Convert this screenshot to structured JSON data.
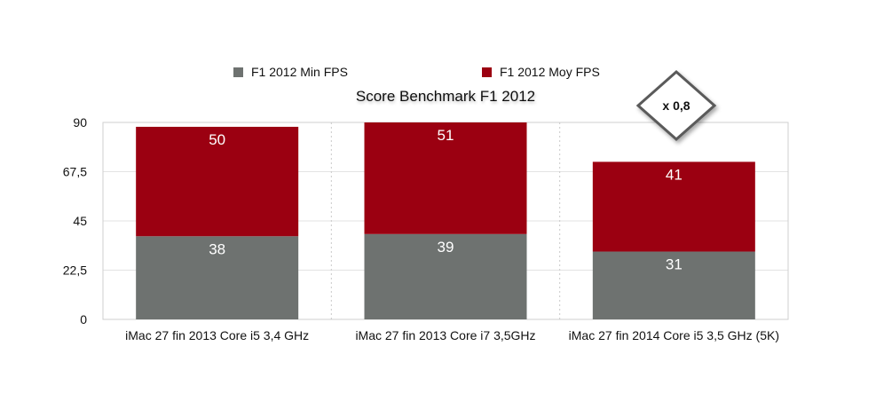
{
  "chart_data": {
    "type": "bar",
    "stacked": true,
    "title": "Score Benchmark F1 2012",
    "xlabel": "",
    "ylabel": "",
    "ylim": [
      0,
      90
    ],
    "yticks": [
      "0",
      "22,5",
      "45",
      "67,5",
      "90"
    ],
    "ytick_values": [
      0,
      22.5,
      45,
      67.5,
      90
    ],
    "grid": true,
    "legend_position": "top",
    "categories": [
      "iMac 27 fin 2013 Core i5 3,4 GHz",
      "iMac 27 fin 2013 Core i7 3,5GHz",
      "iMac 27 fin 2014 Core i5 3,5 GHz (5K)"
    ],
    "series": [
      {
        "name": "F1 2012 Min FPS",
        "color": "#6e7270",
        "values": [
          38,
          39,
          31
        ]
      },
      {
        "name": "F1 2012 Moy FPS",
        "color": "#9b0011",
        "values": [
          50,
          51,
          41
        ]
      }
    ],
    "annotations": [
      {
        "text": "x 0,8",
        "category_index": 2,
        "shape": "diamond"
      }
    ]
  }
}
